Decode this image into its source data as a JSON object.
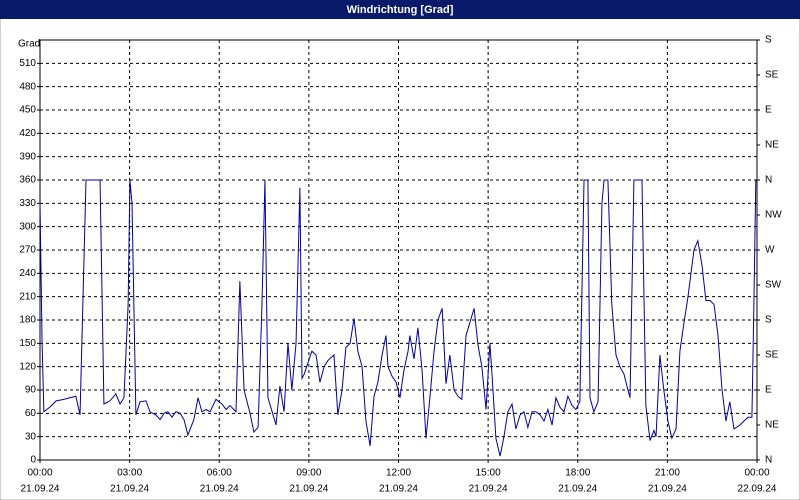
{
  "chart_data": {
    "type": "line",
    "title": "Windrichtung [Grad]",
    "ylabel": "Grad",
    "color": "#0000a0",
    "grid": true,
    "xlim": [
      0,
      24
    ],
    "xticks": [
      {
        "value": 0,
        "label": "00:00",
        "date": "21.09.24"
      },
      {
        "value": 3,
        "label": "03:00",
        "date": "21.09.24"
      },
      {
        "value": 6,
        "label": "06:00",
        "date": "21.09.24"
      },
      {
        "value": 9,
        "label": "09:00",
        "date": "21.09.24"
      },
      {
        "value": 12,
        "label": "12:00",
        "date": "21.09.24"
      },
      {
        "value": 15,
        "label": "15:00",
        "date": "21.09.24"
      },
      {
        "value": 18,
        "label": "18:00",
        "date": "21.09.24"
      },
      {
        "value": 21,
        "label": "21:00",
        "date": "21.09.24"
      },
      {
        "value": 24,
        "label": "00:00",
        "date": "22.09.24"
      }
    ],
    "ylim": [
      0,
      540
    ],
    "yticks": [
      0,
      30,
      60,
      90,
      120,
      150,
      180,
      210,
      240,
      270,
      300,
      330,
      360,
      390,
      420,
      450,
      480,
      510
    ],
    "y2lim": [
      0,
      540
    ],
    "y2ticks": [
      {
        "value": 0,
        "label": "N"
      },
      {
        "value": 45,
        "label": "NE"
      },
      {
        "value": 90,
        "label": "E"
      },
      {
        "value": 135,
        "label": "SE"
      },
      {
        "value": 180,
        "label": "S"
      },
      {
        "value": 225,
        "label": "SW"
      },
      {
        "value": 270,
        "label": "W"
      },
      {
        "value": 315,
        "label": "NW"
      },
      {
        "value": 360,
        "label": "N"
      },
      {
        "value": 405,
        "label": "NE"
      },
      {
        "value": 450,
        "label": "E"
      },
      {
        "value": 495,
        "label": "SE"
      },
      {
        "value": 540,
        "label": "S"
      }
    ],
    "x": [
      0,
      0.07,
      0.13,
      0.33,
      0.54,
      0.8,
      1.0,
      1.2,
      1.34,
      1.54,
      1.67,
      1.87,
      2.01,
      2.14,
      2.34,
      2.54,
      2.68,
      2.81,
      2.95,
      3.01,
      3.08,
      3.21,
      3.35,
      3.55,
      3.68,
      3.88,
      4.02,
      4.15,
      4.28,
      4.42,
      4.55,
      4.69,
      4.82,
      4.95,
      5.15,
      5.29,
      5.42,
      5.56,
      5.69,
      5.89,
      6.09,
      6.23,
      6.36,
      6.56,
      6.69,
      6.83,
      7.03,
      7.16,
      7.3,
      7.43,
      7.53,
      7.63,
      7.77,
      7.9,
      8.03,
      8.17,
      8.3,
      8.43,
      8.57,
      8.7,
      8.77,
      8.84,
      8.97,
      9.1,
      9.24,
      9.37,
      9.51,
      9.64,
      9.84,
      9.97,
      10.11,
      10.24,
      10.38,
      10.51,
      10.64,
      10.78,
      10.91,
      11.05,
      11.18,
      11.31,
      11.45,
      11.58,
      11.65,
      11.78,
      11.92,
      12.05,
      12.18,
      12.32,
      12.38,
      12.52,
      12.65,
      12.79,
      12.92,
      13.05,
      13.19,
      13.32,
      13.46,
      13.59,
      13.72,
      13.86,
      13.99,
      14.12,
      14.26,
      14.53,
      14.66,
      14.79,
      14.93,
      15.06,
      15.13,
      15.26,
      15.4,
      15.53,
      15.66,
      15.8,
      15.93,
      16.07,
      16.2,
      16.33,
      16.47,
      16.6,
      16.74,
      16.87,
      17.0,
      17.14,
      17.27,
      17.4,
      17.54,
      17.67,
      17.81,
      17.94,
      18.07,
      18.21,
      18.27,
      18.34,
      18.41,
      18.54,
      18.68,
      18.81,
      18.88,
      19.01,
      19.14,
      19.28,
      19.41,
      19.55,
      19.68,
      19.75,
      19.88,
      20.02,
      20.15,
      20.28,
      20.42,
      20.55,
      20.62,
      20.75,
      20.88,
      21.02,
      21.15,
      21.29,
      21.42,
      21.55,
      21.69,
      21.89,
      22.02,
      22.16,
      22.29,
      22.43,
      22.56,
      22.69,
      22.83,
      22.96,
      23.09,
      23.23,
      23.43,
      23.56,
      23.7,
      23.83,
      23.9,
      23.96
    ],
    "values": [
      330,
      150,
      62,
      68,
      76,
      78,
      80,
      82,
      58,
      360,
      360,
      360,
      360,
      72,
      76,
      85,
      72,
      80,
      200,
      360,
      330,
      58,
      75,
      76,
      62,
      58,
      52,
      60,
      62,
      55,
      62,
      60,
      52,
      32,
      52,
      80,
      62,
      65,
      62,
      78,
      72,
      65,
      70,
      62,
      230,
      90,
      60,
      36,
      42,
      200,
      360,
      80,
      62,
      45,
      95,
      62,
      150,
      90,
      150,
      350,
      105,
      110,
      125,
      140,
      135,
      100,
      120,
      128,
      135,
      58,
      90,
      145,
      150,
      182,
      140,
      120,
      50,
      18,
      82,
      100,
      135,
      160,
      120,
      108,
      100,
      80,
      115,
      140,
      160,
      130,
      170,
      115,
      28,
      80,
      140,
      180,
      195,
      98,
      135,
      90,
      82,
      78,
      160,
      195,
      148,
      120,
      65,
      150,
      110,
      28,
      5,
      30,
      62,
      72,
      40,
      58,
      62,
      42,
      62,
      62,
      58,
      50,
      65,
      45,
      80,
      68,
      62,
      82,
      70,
      65,
      75,
      360,
      360,
      360,
      80,
      62,
      75,
      330,
      360,
      360,
      200,
      135,
      120,
      110,
      90,
      80,
      360,
      360,
      360,
      70,
      25,
      38,
      30,
      135,
      90,
      50,
      28,
      40,
      140,
      175,
      210,
      270,
      282,
      250,
      205,
      205,
      200,
      162,
      90,
      50,
      75,
      40,
      45,
      50,
      55,
      55,
      210,
      360
    ]
  }
}
